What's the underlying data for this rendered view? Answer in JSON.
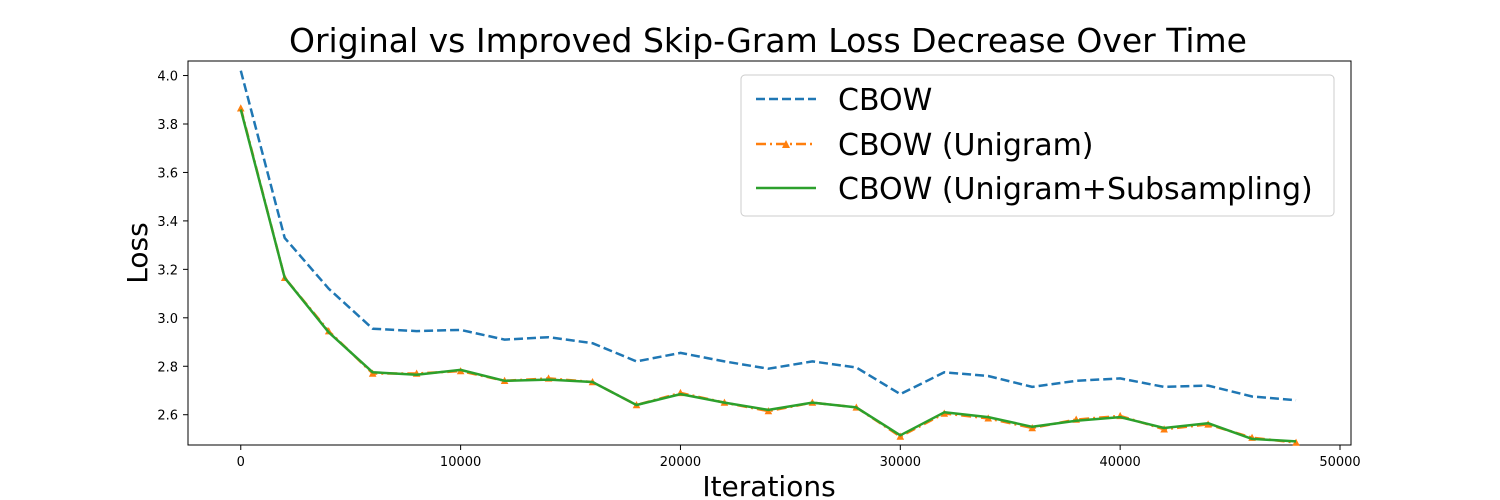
{
  "chart_data": {
    "type": "line",
    "title": "Original vs Improved Skip-Gram Loss Decrease Over Time",
    "xlabel": "Iterations",
    "ylabel": "Loss",
    "xlim": [
      -2400,
      50500
    ],
    "ylim": [
      2.475,
      4.06
    ],
    "xticks": [
      0,
      10000,
      20000,
      30000,
      40000,
      50000
    ],
    "yticks": [
      2.6,
      2.8,
      3.0,
      3.2,
      3.4,
      3.6,
      3.8,
      4.0
    ],
    "xtick_labels": [
      "0",
      "10000",
      "20000",
      "30000",
      "40000",
      "50000"
    ],
    "ytick_labels": [
      "2.6",
      "2.8",
      "3.0",
      "3.2",
      "3.4",
      "3.6",
      "3.8",
      "4.0"
    ],
    "grid": false,
    "legend_position": "top-right",
    "x": [
      0,
      2000,
      4000,
      6000,
      8000,
      10000,
      12000,
      14000,
      16000,
      18000,
      20000,
      22000,
      24000,
      26000,
      28000,
      30000,
      32000,
      34000,
      36000,
      38000,
      40000,
      42000,
      44000,
      46000,
      48000
    ],
    "series": [
      {
        "name": "CBOW",
        "color": "#1f77b4",
        "style": "dashed",
        "marker": "none",
        "values": [
          4.02,
          3.33,
          3.12,
          2.955,
          2.945,
          2.95,
          2.91,
          2.92,
          2.895,
          2.82,
          2.855,
          2.82,
          2.79,
          2.82,
          2.795,
          2.685,
          2.775,
          2.76,
          2.715,
          2.74,
          2.75,
          2.715,
          2.72,
          2.675,
          2.66
        ]
      },
      {
        "name": "CBOW (Unigram)",
        "color": "#ff7f0e",
        "style": "dashdot",
        "marker": "triangle",
        "values": [
          3.865,
          3.165,
          2.945,
          2.77,
          2.77,
          2.78,
          2.74,
          2.75,
          2.735,
          2.64,
          2.69,
          2.65,
          2.615,
          2.65,
          2.63,
          2.51,
          2.605,
          2.585,
          2.545,
          2.58,
          2.595,
          2.54,
          2.56,
          2.505,
          2.485
        ]
      },
      {
        "name": "CBOW (Unigram+Subsampling)",
        "color": "#2ca02c",
        "style": "solid",
        "marker": "none",
        "values": [
          3.86,
          3.165,
          2.94,
          2.775,
          2.765,
          2.785,
          2.74,
          2.745,
          2.735,
          2.64,
          2.685,
          2.65,
          2.62,
          2.65,
          2.63,
          2.515,
          2.61,
          2.59,
          2.55,
          2.575,
          2.59,
          2.545,
          2.565,
          2.5,
          2.49
        ]
      }
    ]
  }
}
